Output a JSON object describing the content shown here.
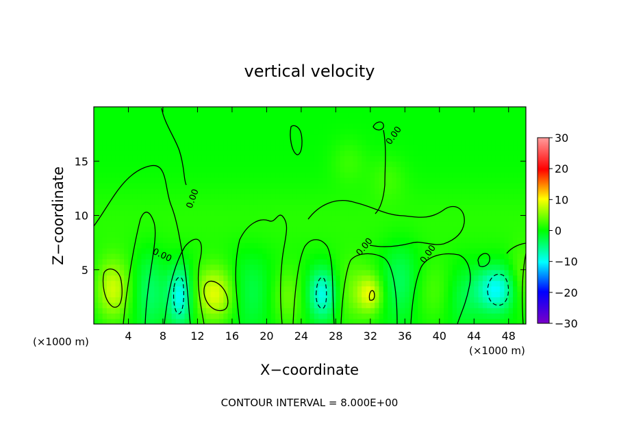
{
  "chart_data": {
    "type": "heatmap",
    "title": "vertical velocity",
    "xlabel": "X−coordinate",
    "ylabel": "Z−coordinate",
    "x_unit_left": "(×1000 m)",
    "x_unit_right": "(×1000 m)",
    "footer": "CONTOUR INTERVAL = 8.000E+00",
    "xlim": [
      0,
      50
    ],
    "ylim": [
      0,
      20
    ],
    "x_ticks": [
      4,
      8,
      12,
      16,
      20,
      24,
      28,
      32,
      36,
      40,
      44,
      48
    ],
    "y_ticks": [
      5,
      10,
      15
    ],
    "x_tick_labels": [
      "4",
      "8",
      "12",
      "16",
      "20",
      "24",
      "28",
      "32",
      "36",
      "40",
      "44",
      "48"
    ],
    "y_tick_labels": [
      "5",
      "10",
      "15"
    ],
    "colorbar": {
      "min": -30,
      "max": 30,
      "ticks": [
        30,
        20,
        10,
        0,
        -10,
        -20,
        -30
      ],
      "tick_labels": [
        "30",
        "20",
        "10",
        "0",
        "−10",
        "−20",
        "−30"
      ],
      "colors": [
        "#7a00c8",
        "#0000ff",
        "#00ffff",
        "#00ff00",
        "#ffff00",
        "#ff0000",
        "#ff9c9c"
      ]
    },
    "contour_labels": [
      "0.00",
      "0.00",
      "0.00",
      "0.00",
      "0.00"
    ],
    "background_value": 0,
    "features": [
      {
        "x": 2.2,
        "z": 3.2,
        "sx": 1.4,
        "sz": 2.0,
        "value": 8
      },
      {
        "x": 14.0,
        "z": 2.8,
        "sx": 1.7,
        "sz": 1.8,
        "value": 9
      },
      {
        "x": 10.0,
        "z": 2.6,
        "sx": 1.0,
        "sz": 1.8,
        "value": -10
      },
      {
        "x": 26.5,
        "z": 2.8,
        "sx": 1.2,
        "sz": 1.6,
        "value": -10
      },
      {
        "x": 46.5,
        "z": 3.2,
        "sx": 1.6,
        "sz": 1.4,
        "value": -10
      },
      {
        "x": 6.5,
        "z": 3.0,
        "sx": 1.2,
        "sz": 2.5,
        "value": -4
      },
      {
        "x": 18.0,
        "z": 3.0,
        "sx": 1.8,
        "sz": 2.5,
        "value": -3
      },
      {
        "x": 22.5,
        "z": 2.5,
        "sx": 1.5,
        "sz": 2.0,
        "value": 4
      },
      {
        "x": 30.0,
        "z": 3.0,
        "sx": 2.0,
        "sz": 2.2,
        "value": 4
      },
      {
        "x": 32.0,
        "z": 2.8,
        "sx": 1.0,
        "sz": 1.2,
        "value": 7
      },
      {
        "x": 35.5,
        "z": 4.0,
        "sx": 1.6,
        "sz": 2.5,
        "value": -4
      },
      {
        "x": 39.5,
        "z": 3.0,
        "sx": 2.0,
        "sz": 2.2,
        "value": 3
      },
      {
        "x": 42.5,
        "z": 2.5,
        "sx": 1.5,
        "sz": 2.0,
        "value": -3
      },
      {
        "x": 49.5,
        "z": 4.0,
        "sx": 1.0,
        "sz": 2.0,
        "value": 4
      },
      {
        "x": 29.5,
        "z": 15.0,
        "sx": 1.5,
        "sz": 1.5,
        "value": 2
      },
      {
        "x": 34.0,
        "z": 13.5,
        "sx": 1.5,
        "sz": 1.5,
        "value": 2
      }
    ]
  }
}
